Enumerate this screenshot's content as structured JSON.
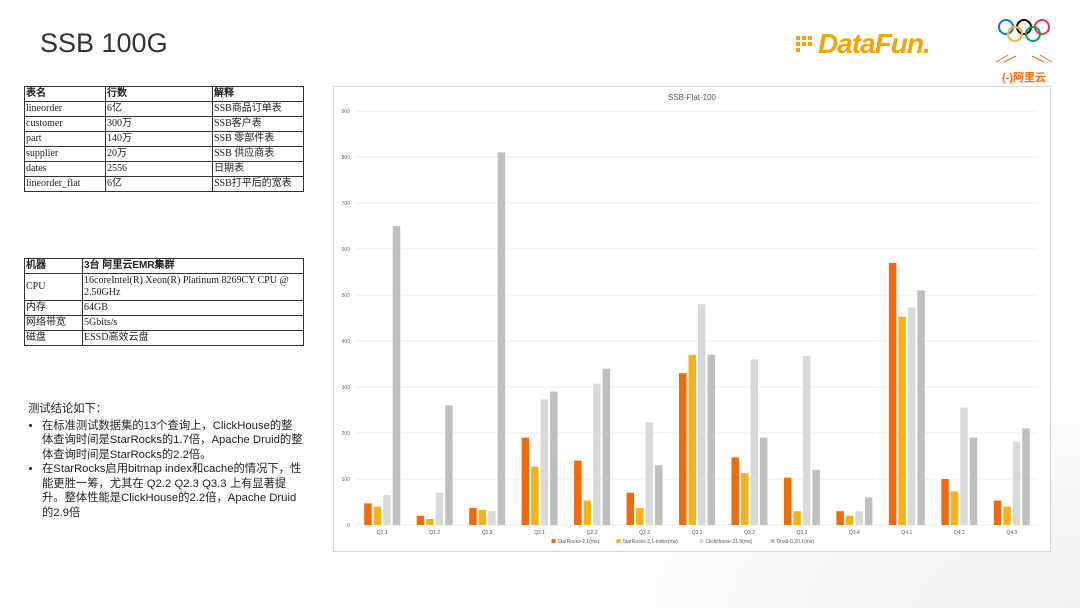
{
  "slide": {
    "title": "SSB 100G",
    "logo_datafun": "DataFun.",
    "logo_aliyun": "(-)阿里云"
  },
  "table_tables": {
    "headers": [
      "表名",
      "行数",
      "解释"
    ],
    "rows": [
      [
        "lineorder",
        "6亿",
        "SSB商品订单表"
      ],
      [
        "customer",
        "300万",
        "SSB客户表"
      ],
      [
        "part",
        "140万",
        "SSB 零部件表"
      ],
      [
        "supplier",
        "20万",
        "SSB 供应商表"
      ],
      [
        "dates",
        "2556",
        "日期表"
      ],
      [
        "lineorder_flat",
        "6亿",
        "SSB打平后的宽表"
      ]
    ]
  },
  "table_machine": {
    "headers": [
      "机器",
      "3台 阿里云EMR集群"
    ],
    "rows": [
      [
        "CPU",
        "16coreIntel(R) Xeon(R) Platinum 8269CY CPU @ 2.50GHz"
      ],
      [
        "内存",
        "64GB"
      ],
      [
        "网络带宽",
        "5Gbits/s"
      ],
      [
        "磁盘",
        "ESSD高效云盘"
      ]
    ]
  },
  "conclusion": {
    "heading": "测试结论如下：",
    "bullets": [
      "在标准测试数据集的13个查询上，ClickHouse的整体查询时间是StarRocks的1.7倍，Apache Druid的整体查询时间是StarRocks的2.2倍。",
      "在StarRocks启用bitmap index和cache的情况下，性能更胜一筹，尤其在 Q2.2 Q2.3 Q3.3 上有显著提升。整体性能是ClickHouse的2.2倍，Apache Druid的2.9倍"
    ]
  },
  "chart_data": {
    "type": "bar",
    "title": "SSB-Flat-100",
    "categories": [
      "Q1.1",
      "Q1.2",
      "Q1.3",
      "Q2.1",
      "Q2.2",
      "Q2.3",
      "Q3.1",
      "Q3.2",
      "Q3.3",
      "Q3.4",
      "Q4.1",
      "Q4.2",
      "Q4.3"
    ],
    "ylim": [
      0,
      900
    ],
    "yticks": [
      0,
      100,
      200,
      300,
      400,
      500,
      600,
      700,
      800,
      900
    ],
    "grid": true,
    "legend_position": "bottom",
    "series": [
      {
        "name": "StarRocks-2.1(ms)",
        "color": "#f26a0a",
        "values": [
          47,
          20,
          37,
          190,
          140,
          70,
          330,
          147,
          103,
          30,
          570,
          100,
          53
        ]
      },
      {
        "name": "StarRocks-2.1-index(ms)",
        "color": "#f7b21a",
        "values": [
          40,
          13,
          33,
          127,
          53,
          37,
          370,
          113,
          30,
          20,
          453,
          73,
          40
        ]
      },
      {
        "name": "ClickHouse-21.9(ms)",
        "color": "#d9d9d9",
        "values": [
          65,
          70,
          30,
          273,
          307,
          223,
          480,
          360,
          367,
          30,
          473,
          255,
          180
        ]
      },
      {
        "name": "Druid-0.20.1(ms)",
        "color": "#bfbfbf",
        "values": [
          650,
          260,
          810,
          290,
          340,
          130,
          370,
          190,
          120,
          60,
          510,
          190,
          210
        ]
      }
    ]
  }
}
